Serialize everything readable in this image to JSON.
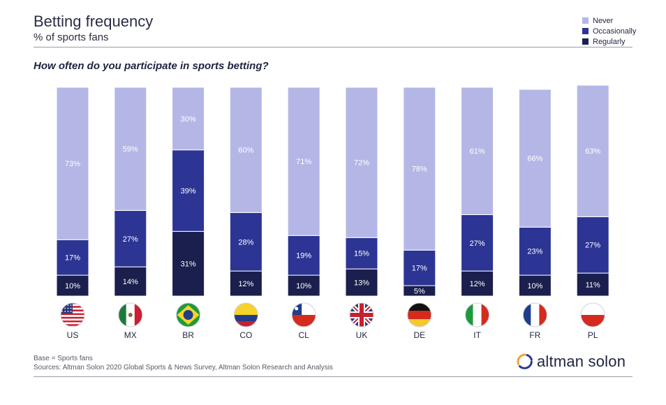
{
  "header": {
    "title": "Betting frequency",
    "subtitle": "% of sports fans",
    "question": "How often do you participate in sports betting?"
  },
  "colors": {
    "never": "#b4b7e6",
    "occasionally": "#2c3594",
    "regularly": "#1b1f4d"
  },
  "legend": [
    {
      "label": "Never",
      "key": "never"
    },
    {
      "label": "Occasionally",
      "key": "occasionally"
    },
    {
      "label": "Regularly",
      "key": "regularly"
    }
  ],
  "chart_data": {
    "type": "bar",
    "stacked": true,
    "title": "Betting frequency",
    "subtitle": "% of sports fans",
    "question": "How often do you participate in sports betting?",
    "categories": [
      "US",
      "MX",
      "BR",
      "CO",
      "CL",
      "UK",
      "DE",
      "IT",
      "FR",
      "PL"
    ],
    "series": [
      {
        "name": "Regularly",
        "key": "regularly",
        "values": [
          10,
          14,
          31,
          12,
          10,
          13,
          5,
          12,
          10,
          11
        ]
      },
      {
        "name": "Occasionally",
        "key": "occasionally",
        "values": [
          17,
          27,
          39,
          28,
          19,
          15,
          17,
          27,
          23,
          27
        ]
      },
      {
        "name": "Never",
        "key": "never",
        "values": [
          73,
          59,
          30,
          60,
          71,
          72,
          78,
          61,
          66,
          63
        ]
      }
    ],
    "ylim": [
      0,
      100
    ],
    "legend_position": "top-right",
    "value_suffix": "%"
  },
  "footer": {
    "base": "Base = Sports fans",
    "sources": "Sources: Altman Solon 2020 Global Sports & News Survey, Altman Solon Research and Analysis"
  },
  "logo": {
    "text": "altman solon",
    "icon": "altman-solon-logo-icon"
  }
}
